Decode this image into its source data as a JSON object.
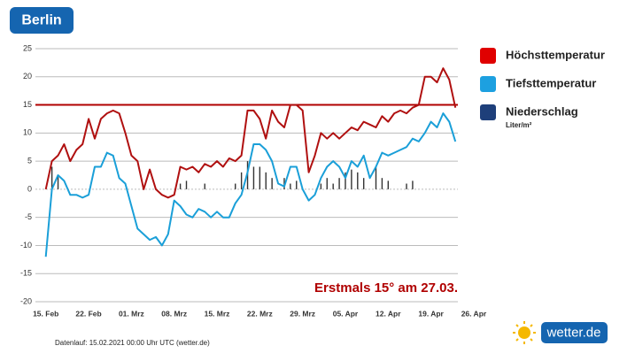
{
  "chart_data": {
    "type": "line",
    "title": "Berlin",
    "annotation": "Erstmals 15° am 27.03.",
    "footer": "Datenlauf: 15.02.2021 00:00 Uhr UTC (wetter.de)",
    "brand": "wetter.de",
    "precip_unit": "Liter/m²",
    "threshold": 15,
    "threshold_color": "#b00000",
    "x": [
      0,
      1,
      2,
      3,
      4,
      5,
      6,
      7,
      8,
      9,
      10,
      11,
      12,
      13,
      14,
      15,
      16,
      17,
      18,
      19,
      20,
      21,
      22,
      23,
      24,
      25,
      26,
      27,
      28,
      29,
      30,
      31,
      32,
      33,
      34,
      35,
      36,
      37,
      38,
      39,
      40,
      41,
      42,
      43,
      44,
      45,
      46,
      47,
      48,
      49,
      50,
      51,
      52,
      53,
      54,
      55,
      56,
      57,
      58,
      59,
      60,
      61,
      62,
      63,
      64,
      65,
      66,
      67
    ],
    "xlim": [
      -1.7,
      67.4
    ],
    "xticks": [
      {
        "value": 0,
        "label": "15. Feb"
      },
      {
        "value": 7,
        "label": "22. Feb"
      },
      {
        "value": 14,
        "label": "01. Mrz"
      },
      {
        "value": 21,
        "label": "08. Mrz"
      },
      {
        "value": 28,
        "label": "15. Mrz"
      },
      {
        "value": 35,
        "label": "22. Mrz"
      },
      {
        "value": 42,
        "label": "29. Mrz"
      },
      {
        "value": 49,
        "label": "05. Apr"
      },
      {
        "value": 56,
        "label": "12. Apr"
      },
      {
        "value": 63,
        "label": "19. Apr"
      },
      {
        "value": 70,
        "label": "26. Apr"
      }
    ],
    "ylim": [
      -20,
      25
    ],
    "yticks": [
      -20,
      -15,
      -10,
      -5,
      0,
      5,
      10,
      15,
      20,
      25
    ],
    "grid": true,
    "series": [
      {
        "name": "Höchsttemperatur",
        "color": "#b01010",
        "legend_color": "#e00000",
        "values": [
          0,
          5,
          6,
          8,
          5,
          7,
          8,
          12.5,
          9,
          12.5,
          13.5,
          14,
          13.5,
          10,
          6,
          5,
          0,
          3.5,
          0,
          -1,
          -1.5,
          -1,
          4,
          3.5,
          4,
          3,
          4.5,
          4,
          5,
          4,
          5.5,
          5,
          6,
          14,
          14,
          12.5,
          9,
          14,
          12,
          11,
          15,
          15,
          14,
          3,
          6,
          10,
          9,
          10,
          9,
          10,
          11,
          10.5,
          12,
          11.5,
          11,
          13,
          12,
          13.5,
          14,
          13.5,
          14.5,
          15,
          20,
          20,
          19,
          21.5,
          19.5,
          14.5
        ]
      },
      {
        "name": "Tiefsttemperatur",
        "color": "#1a9fd8",
        "legend_color": "#1da0e0",
        "values": [
          -12,
          0,
          2.5,
          1.5,
          -1,
          -1,
          -1.5,
          -1,
          4,
          4,
          6.5,
          6,
          2,
          1,
          -3,
          -7,
          -8,
          -9,
          -8.5,
          -10,
          -8,
          -2,
          -3,
          -4.5,
          -5,
          -3.5,
          -4,
          -5,
          -4,
          -5,
          -5,
          -2.5,
          -1,
          3,
          8,
          8,
          7,
          5,
          1,
          0.5,
          4,
          4,
          0,
          -2,
          -1,
          2,
          4,
          5,
          4,
          2,
          5,
          4,
          6,
          2,
          4,
          6.5,
          6,
          6.5,
          7,
          7.5,
          9,
          8.5,
          10,
          12,
          11,
          13.5,
          12,
          8.5
        ]
      },
      {
        "name": "Niederschlag",
        "color": "#333333",
        "legend_color": "#1e3f7a",
        "kind": "bar",
        "values": [
          0,
          4,
          2.5,
          0,
          0,
          0,
          0,
          0,
          0,
          0,
          0,
          0,
          0,
          0,
          0,
          0,
          0,
          0,
          0,
          0,
          0,
          0,
          1,
          1.5,
          0,
          0,
          1,
          0,
          0,
          0,
          0,
          1,
          3,
          5,
          4,
          4,
          3,
          2,
          0,
          2,
          1,
          1.5,
          0,
          0,
          0,
          1,
          2,
          1,
          2,
          3,
          3.5,
          3,
          2,
          0,
          4,
          2,
          1.5,
          0,
          0,
          1,
          1.5,
          0,
          0,
          0,
          0,
          0,
          0,
          0
        ]
      }
    ]
  }
}
